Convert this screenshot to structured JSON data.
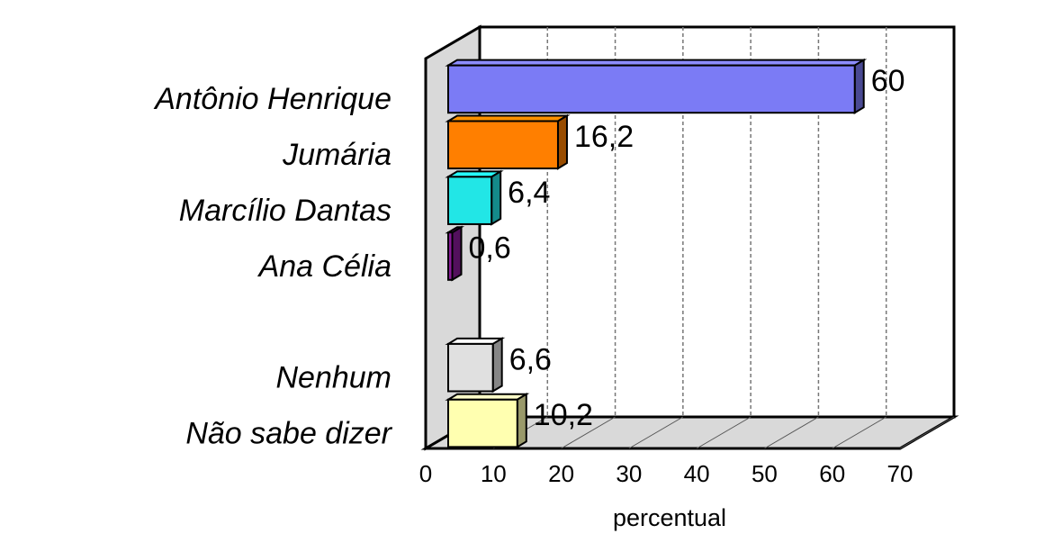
{
  "chart_data": {
    "type": "bar",
    "orientation": "horizontal",
    "three_d": true,
    "categories": [
      "Antônio Henrique",
      "Jumária",
      "Marcílio Dantas",
      "Ana Célia",
      "",
      "Nenhum",
      "Não sabe dizer"
    ],
    "values": [
      60,
      null,
      null,
      null,
      null,
      null,
      null
    ],
    "value_labels": [
      "60",
      "16,2",
      "6,4",
      "0,6",
      "",
      "6,6",
      "10,2"
    ],
    "numeric_values": [
      60,
      16.2,
      6.4,
      0.6,
      null,
      6.6,
      10.2
    ],
    "colors": [
      "#7b7bf5",
      "#ff7f00",
      "#22e6e6",
      "#8b1a9b",
      null,
      "#e0e0e0",
      "#ffffb0"
    ],
    "xlabel": "percentual",
    "xlim": [
      0,
      70
    ],
    "xticks": [
      "0",
      "10",
      "20",
      "30",
      "40",
      "50",
      "60",
      "70"
    ],
    "grid": true
  }
}
